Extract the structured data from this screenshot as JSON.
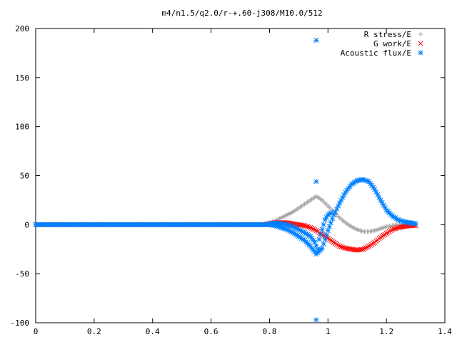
{
  "chart_data": {
    "type": "scatter",
    "title": "m4/n1.5/q2.0/r-+.60-j308/M10.0/512",
    "xlabel": "",
    "ylabel": "",
    "xlim": [
      0,
      1.4
    ],
    "ylim": [
      -100,
      200
    ],
    "x_ticks": [
      "0",
      "0.2",
      "0.4",
      "0.6",
      "0.8",
      "1",
      "1.2",
      "1.4"
    ],
    "y_ticks": [
      "-100",
      "-50",
      "0",
      "50",
      "100",
      "150",
      "200"
    ],
    "grid": false,
    "legend_position": "top-right",
    "series": [
      {
        "name": "R stress/E",
        "marker": "plus",
        "color": "#a0a0a0",
        "x": [
          0.0,
          0.1,
          0.2,
          0.3,
          0.4,
          0.5,
          0.6,
          0.7,
          0.78,
          0.8,
          0.82,
          0.84,
          0.86,
          0.88,
          0.9,
          0.92,
          0.94,
          0.96,
          0.98,
          1.0,
          1.02,
          1.04,
          1.06,
          1.08,
          1.1,
          1.12,
          1.14,
          1.16,
          1.18,
          1.2,
          1.22,
          1.24,
          1.26,
          1.28,
          1.3
        ],
        "y": [
          0,
          0,
          0,
          0,
          0,
          0,
          0,
          0,
          0.5,
          2,
          4,
          7,
          10,
          13,
          17,
          21,
          25,
          29,
          25,
          19,
          13,
          7,
          2,
          -2,
          -5,
          -7,
          -7,
          -6,
          -4,
          -2,
          -1,
          0,
          0,
          0.5,
          1
        ]
      },
      {
        "name": "G work/E",
        "marker": "cross",
        "color": "#ff0000",
        "x": [
          0.0,
          0.1,
          0.2,
          0.3,
          0.4,
          0.5,
          0.6,
          0.7,
          0.78,
          0.8,
          0.82,
          0.84,
          0.86,
          0.88,
          0.9,
          0.92,
          0.94,
          0.96,
          0.98,
          1.0,
          1.02,
          1.04,
          1.06,
          1.08,
          1.1,
          1.12,
          1.14,
          1.16,
          1.18,
          1.2,
          1.22,
          1.24,
          1.26,
          1.28,
          1.3
        ],
        "y": [
          0,
          0,
          0,
          0,
          0,
          0,
          0,
          0,
          0,
          1,
          2,
          2,
          2,
          1,
          0,
          -1,
          -3,
          -6,
          -10,
          -14,
          -18,
          -22,
          -24,
          -25,
          -26,
          -25,
          -22,
          -18,
          -13,
          -9,
          -5,
          -3,
          -2,
          -1,
          -1
        ]
      },
      {
        "name": "Acoustic flux/E",
        "marker": "star",
        "color": "#0080ff",
        "x": [
          0.0,
          0.1,
          0.2,
          0.3,
          0.4,
          0.5,
          0.6,
          0.7,
          0.78,
          0.8,
          0.82,
          0.84,
          0.86,
          0.88,
          0.9,
          0.92,
          0.94,
          0.96,
          0.98,
          1.0,
          1.02,
          1.04,
          1.06,
          1.08,
          1.1,
          1.12,
          1.14,
          1.16,
          1.18,
          1.2,
          1.22,
          1.24,
          1.26,
          1.28,
          1.3,
          0.8,
          0.82,
          0.84,
          0.86,
          0.88,
          0.9,
          0.92,
          0.94,
          0.955,
          0.965,
          0.97,
          0.98,
          0.99,
          1.0,
          1.01,
          0.96,
          0.96,
          0.96
        ],
        "y": [
          0,
          0,
          0,
          0,
          0,
          0,
          0,
          0,
          0,
          0,
          -1,
          -3,
          -5,
          -8,
          -12,
          -16,
          -22,
          -30,
          -24,
          -6,
          10,
          22,
          33,
          41,
          45,
          46,
          44,
          36,
          25,
          15,
          9,
          5,
          3,
          2,
          1,
          1,
          1.5,
          1,
          0,
          -2,
          -5,
          -8,
          -12,
          -18,
          -25,
          -15,
          -5,
          5,
          10,
          12,
          188,
          44,
          -97
        ]
      }
    ]
  }
}
